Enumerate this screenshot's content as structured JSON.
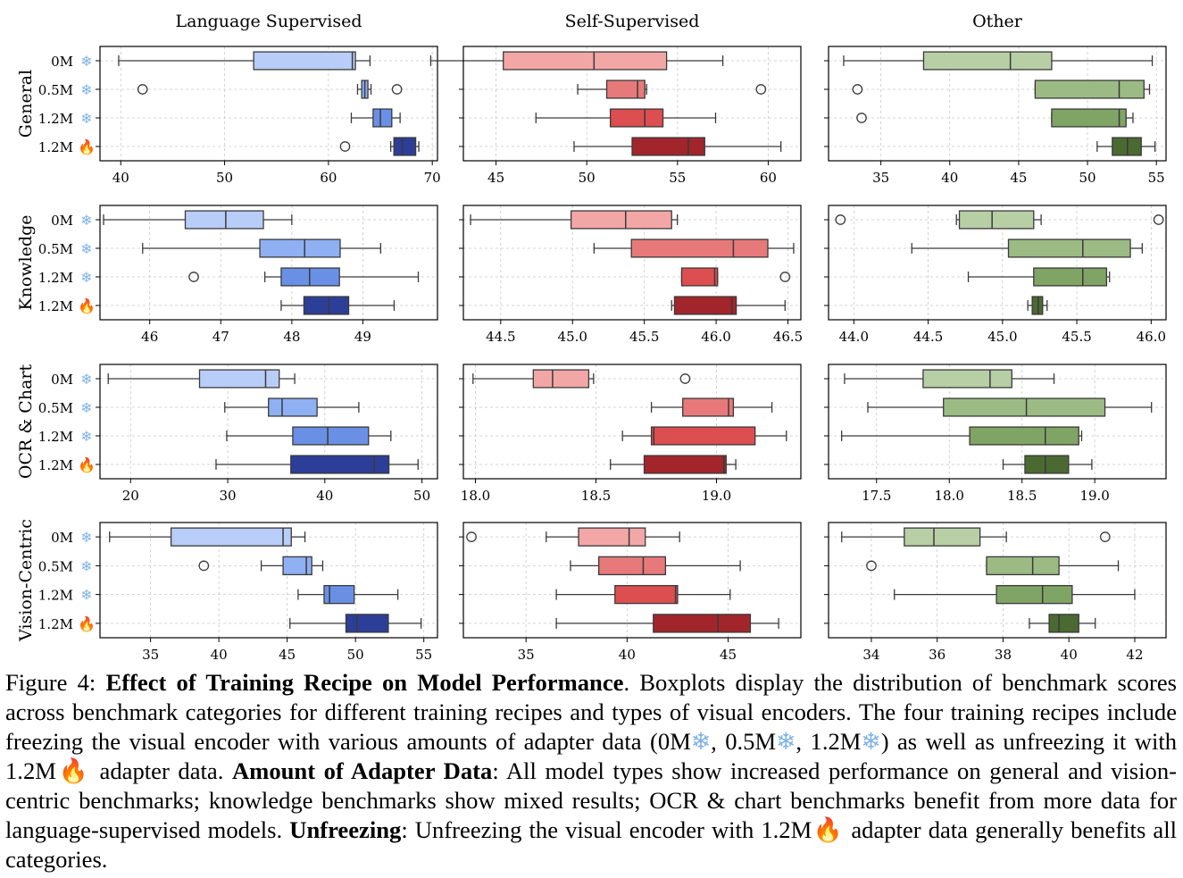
{
  "figure": {
    "columns": [
      "Language Supervised",
      "Self-Supervised",
      "Other"
    ],
    "rows": [
      "General",
      "Knowledge",
      "OCR & Chart",
      "Vision-Centric"
    ],
    "recipes": [
      "0M",
      "0.5M",
      "1.2M",
      "1.2M"
    ],
    "recipe_icons": [
      "snowflake",
      "snowflake",
      "snowflake",
      "fire"
    ],
    "icon_glyphs": {
      "snowflake": "❄",
      "fire": "🔥"
    }
  },
  "colors": {
    "Language Supervised": [
      "#b8cdf7",
      "#8fb0f2",
      "#6a90e6",
      "#2c3e97"
    ],
    "Self-Supervised": [
      "#f2a7a6",
      "#e8797a",
      "#dd4e50",
      "#a3252c"
    ],
    "Other": [
      "#b8cfa5",
      "#9cbb84",
      "#80a465",
      "#4a6a31"
    ]
  },
  "chart_data": [
    {
      "type": "boxplot",
      "row": "General",
      "column": "Language Supervised",
      "xlim": [
        38,
        70.5
      ],
      "xticks": [
        40,
        50,
        60,
        70
      ],
      "boxes": [
        {
          "recipe": "0M",
          "whislo": 39.8,
          "q1": 52.8,
          "med": 62.3,
          "q3": 62.6,
          "whishi": 64.0,
          "fliers": []
        },
        {
          "recipe": "0.5M",
          "whislo": 62.8,
          "q1": 63.2,
          "med": 63.5,
          "q3": 63.8,
          "whishi": 64.1,
          "fliers": [
            42.1,
            66.6
          ]
        },
        {
          "recipe": "1.2M",
          "whislo": 62.2,
          "q1": 64.3,
          "med": 65.0,
          "q3": 66.1,
          "whishi": 66.9,
          "fliers": []
        },
        {
          "recipe": "1.2M",
          "whislo": 66.0,
          "q1": 66.3,
          "med": 67.1,
          "q3": 68.4,
          "whishi": 68.7,
          "fliers": [
            61.6
          ]
        }
      ]
    },
    {
      "type": "boxplot",
      "row": "General",
      "column": "Self-Supervised",
      "xlim": [
        43.2,
        61.8
      ],
      "xticks": [
        45,
        50,
        55,
        60
      ],
      "boxes": [
        {
          "recipe": "0M",
          "whislo": 41.4,
          "q1": 45.4,
          "med": 50.4,
          "q3": 54.4,
          "whishi": 57.5,
          "fliers": []
        },
        {
          "recipe": "0.5M",
          "whislo": 49.5,
          "q1": 51.1,
          "med": 52.8,
          "q3": 53.2,
          "whishi": 53.3,
          "fliers": [
            59.6
          ]
        },
        {
          "recipe": "1.2M",
          "whislo": 47.2,
          "q1": 51.3,
          "med": 53.2,
          "q3": 54.2,
          "whishi": 57.1,
          "fliers": []
        },
        {
          "recipe": "1.2M",
          "whislo": 49.3,
          "q1": 52.5,
          "med": 55.6,
          "q3": 56.5,
          "whishi": 60.7,
          "fliers": []
        }
      ]
    },
    {
      "type": "boxplot",
      "row": "General",
      "column": "Other",
      "xlim": [
        31.2,
        55.7
      ],
      "xticks": [
        35,
        40,
        45,
        50,
        55
      ],
      "boxes": [
        {
          "recipe": "0M",
          "whislo": 32.3,
          "q1": 38.1,
          "med": 44.4,
          "q3": 47.4,
          "whishi": 54.7,
          "fliers": []
        },
        {
          "recipe": "0.5M",
          "whislo": 46.2,
          "q1": 46.2,
          "med": 52.3,
          "q3": 54.1,
          "whishi": 54.5,
          "fliers": [
            33.3
          ]
        },
        {
          "recipe": "1.2M",
          "whislo": 47.4,
          "q1": 47.4,
          "med": 52.3,
          "q3": 52.8,
          "whishi": 53.3,
          "fliers": [
            33.6
          ]
        },
        {
          "recipe": "1.2M",
          "whislo": 50.7,
          "q1": 51.8,
          "med": 52.9,
          "q3": 53.9,
          "whishi": 54.9,
          "fliers": []
        }
      ]
    },
    {
      "type": "boxplot",
      "row": "Knowledge",
      "column": "Language Supervised",
      "xlim": [
        45.3,
        50.05
      ],
      "xticks": [
        46,
        47,
        48,
        49
      ],
      "boxes": [
        {
          "recipe": "0M",
          "whislo": 45.35,
          "q1": 46.5,
          "med": 47.07,
          "q3": 47.6,
          "whishi": 48.0,
          "fliers": []
        },
        {
          "recipe": "0.5M",
          "whislo": 45.9,
          "q1": 47.55,
          "med": 48.18,
          "q3": 48.68,
          "whishi": 49.25,
          "fliers": []
        },
        {
          "recipe": "1.2M",
          "whislo": 47.62,
          "q1": 47.85,
          "med": 48.25,
          "q3": 48.67,
          "whishi": 49.78,
          "fliers": [
            46.62
          ]
        },
        {
          "recipe": "1.2M",
          "whislo": 47.85,
          "q1": 48.17,
          "med": 48.52,
          "q3": 48.8,
          "whishi": 49.44,
          "fliers": []
        }
      ]
    },
    {
      "type": "boxplot",
      "row": "Knowledge",
      "column": "Self-Supervised",
      "xlim": [
        44.24,
        46.59
      ],
      "xticks": [
        44.5,
        45.0,
        45.5,
        46.0,
        46.5
      ],
      "boxes": [
        {
          "recipe": "0M",
          "whislo": 44.29,
          "q1": 44.99,
          "med": 45.37,
          "q3": 45.69,
          "whishi": 45.73,
          "fliers": []
        },
        {
          "recipe": "0.5M",
          "whislo": 45.15,
          "q1": 45.41,
          "med": 46.12,
          "q3": 46.36,
          "whishi": 46.54,
          "fliers": []
        },
        {
          "recipe": "1.2M",
          "whislo": 45.76,
          "q1": 45.76,
          "med": 45.99,
          "q3": 46.01,
          "whishi": 46.01,
          "fliers": [
            46.48
          ]
        },
        {
          "recipe": "1.2M",
          "whislo": 45.69,
          "q1": 45.71,
          "med": 46.11,
          "q3": 46.14,
          "whishi": 46.48,
          "fliers": []
        }
      ]
    },
    {
      "type": "boxplot",
      "row": "Knowledge",
      "column": "Other",
      "xlim": [
        43.83,
        46.1
      ],
      "xticks": [
        44.0,
        44.5,
        45.0,
        45.5,
        46.0
      ],
      "boxes": [
        {
          "recipe": "0M",
          "whislo": 44.69,
          "q1": 44.71,
          "med": 44.93,
          "q3": 45.21,
          "whishi": 45.26,
          "fliers": [
            43.91,
            46.05
          ]
        },
        {
          "recipe": "0.5M",
          "whislo": 44.39,
          "q1": 45.04,
          "med": 45.54,
          "q3": 45.86,
          "whishi": 45.94,
          "fliers": []
        },
        {
          "recipe": "1.2M",
          "whislo": 44.77,
          "q1": 45.21,
          "med": 45.54,
          "q3": 45.7,
          "whishi": 45.72,
          "fliers": []
        },
        {
          "recipe": "1.2M",
          "whislo": 45.17,
          "q1": 45.2,
          "med": 45.24,
          "q3": 45.27,
          "whishi": 45.3,
          "fliers": []
        }
      ]
    },
    {
      "type": "boxplot",
      "row": "OCR & Chart",
      "column": "Language Supervised",
      "xlim": [
        16.85,
        51.6
      ],
      "xticks": [
        20,
        30,
        40,
        50
      ],
      "boxes": [
        {
          "recipe": "0M",
          "whislo": 17.7,
          "q1": 27.1,
          "med": 33.9,
          "q3": 35.3,
          "whishi": 36.9,
          "fliers": []
        },
        {
          "recipe": "0.5M",
          "whislo": 29.7,
          "q1": 34.2,
          "med": 35.6,
          "q3": 39.2,
          "whishi": 43.5,
          "fliers": []
        },
        {
          "recipe": "1.2M",
          "whislo": 29.9,
          "q1": 36.7,
          "med": 40.3,
          "q3": 44.5,
          "whishi": 46.8,
          "fliers": []
        },
        {
          "recipe": "1.2M",
          "whislo": 28.8,
          "q1": 36.5,
          "med": 45.1,
          "q3": 46.6,
          "whishi": 49.6,
          "fliers": []
        }
      ]
    },
    {
      "type": "boxplot",
      "row": "OCR & Chart",
      "column": "Self-Supervised",
      "xlim": [
        17.95,
        19.35
      ],
      "xticks": [
        18.0,
        18.5,
        19.0
      ],
      "boxes": [
        {
          "recipe": "0M",
          "whislo": 17.99,
          "q1": 18.24,
          "med": 18.32,
          "q3": 18.47,
          "whishi": 18.49,
          "fliers": [
            18.87
          ]
        },
        {
          "recipe": "0.5M",
          "whislo": 18.73,
          "q1": 18.86,
          "med": 19.05,
          "q3": 19.07,
          "whishi": 19.23,
          "fliers": []
        },
        {
          "recipe": "1.2M",
          "whislo": 18.61,
          "q1": 18.73,
          "med": 18.74,
          "q3": 19.16,
          "whishi": 19.29,
          "fliers": []
        },
        {
          "recipe": "1.2M",
          "whislo": 18.56,
          "q1": 18.7,
          "med": 19.03,
          "q3": 19.04,
          "whishi": 19.08,
          "fliers": []
        }
      ]
    },
    {
      "type": "boxplot",
      "row": "OCR & Chart",
      "column": "Other",
      "xlim": [
        17.17,
        19.49
      ],
      "xticks": [
        17.5,
        18.0,
        18.5,
        19.0
      ],
      "boxes": [
        {
          "recipe": "0M",
          "whislo": 17.28,
          "q1": 17.82,
          "med": 18.28,
          "q3": 18.43,
          "whishi": 18.72,
          "fliers": []
        },
        {
          "recipe": "0.5M",
          "whislo": 17.44,
          "q1": 17.96,
          "med": 18.53,
          "q3": 19.07,
          "whishi": 19.39,
          "fliers": []
        },
        {
          "recipe": "1.2M",
          "whislo": 17.26,
          "q1": 18.14,
          "med": 18.66,
          "q3": 18.89,
          "whishi": 18.91,
          "fliers": []
        },
        {
          "recipe": "1.2M",
          "whislo": 18.37,
          "q1": 18.52,
          "med": 18.66,
          "q3": 18.82,
          "whishi": 18.98,
          "fliers": []
        }
      ]
    },
    {
      "type": "boxplot",
      "row": "Vision-Centric",
      "column": "Language Supervised",
      "xlim": [
        31.3,
        56.0
      ],
      "xticks": [
        35,
        40,
        45,
        50,
        55
      ],
      "boxes": [
        {
          "recipe": "0M",
          "whislo": 32.0,
          "q1": 36.5,
          "med": 44.7,
          "q3": 45.3,
          "whishi": 46.3,
          "fliers": []
        },
        {
          "recipe": "0.5M",
          "whislo": 43.1,
          "q1": 44.7,
          "med": 46.4,
          "q3": 46.8,
          "whishi": 47.6,
          "fliers": [
            38.9
          ]
        },
        {
          "recipe": "1.2M",
          "whislo": 45.8,
          "q1": 47.7,
          "med": 48.1,
          "q3": 49.9,
          "whishi": 53.1,
          "fliers": []
        },
        {
          "recipe": "1.2M",
          "whislo": 45.2,
          "q1": 49.3,
          "med": 50.1,
          "q3": 52.4,
          "whishi": 54.8,
          "fliers": []
        }
      ]
    },
    {
      "type": "boxplot",
      "row": "Vision-Centric",
      "column": "Self-Supervised",
      "xlim": [
        31.9,
        48.6
      ],
      "xticks": [
        35,
        40,
        45
      ],
      "boxes": [
        {
          "recipe": "0M",
          "whislo": 36.0,
          "q1": 37.6,
          "med": 40.1,
          "q3": 40.9,
          "whishi": 42.6,
          "fliers": [
            32.3
          ]
        },
        {
          "recipe": "0.5M",
          "whislo": 37.2,
          "q1": 38.6,
          "med": 40.8,
          "q3": 41.9,
          "whishi": 45.6,
          "fliers": []
        },
        {
          "recipe": "1.2M",
          "whislo": 36.5,
          "q1": 39.4,
          "med": 42.4,
          "q3": 42.5,
          "whishi": 45.1,
          "fliers": []
        },
        {
          "recipe": "1.2M",
          "whislo": 36.5,
          "q1": 41.3,
          "med": 44.5,
          "q3": 46.1,
          "whishi": 47.5,
          "fliers": []
        }
      ]
    },
    {
      "type": "boxplot",
      "row": "Vision-Centric",
      "column": "Other",
      "xlim": [
        32.7,
        42.95
      ],
      "xticks": [
        34,
        36,
        38,
        40,
        42
      ],
      "boxes": [
        {
          "recipe": "0M",
          "whislo": 33.1,
          "q1": 35.0,
          "med": 35.9,
          "q3": 37.3,
          "whishi": 38.1,
          "fliers": [
            41.1
          ]
        },
        {
          "recipe": "0.5M",
          "whislo": 37.5,
          "q1": 37.5,
          "med": 38.9,
          "q3": 39.7,
          "whishi": 41.5,
          "fliers": [
            34.0
          ]
        },
        {
          "recipe": "1.2M",
          "whislo": 34.7,
          "q1": 37.8,
          "med": 39.2,
          "q3": 40.1,
          "whishi": 42.0,
          "fliers": []
        },
        {
          "recipe": "1.2M",
          "whislo": 38.8,
          "q1": 39.4,
          "med": 39.7,
          "q3": 40.3,
          "whishi": 40.8,
          "fliers": []
        }
      ]
    }
  ],
  "caption": {
    "label": "Figure 4: ",
    "title": "Effect of Training Recipe on Model Performance",
    "s1": ". Boxplots display the distribution of benchmark scores across benchmark categories for different training recipes and types of visual encoders. The four training recipes include freezing the visual encoder with various amounts of adapter data (",
    "r1": "0M",
    "sep1": ", ",
    "r2": "0.5M",
    "sep2": ", ",
    "r3": "1.2M",
    "s2": ") as well as unfreezing it with ",
    "r4": "1.2M",
    "s3": " adapter data. ",
    "b2": "Amount of Adapter Data",
    "s4": ": All model types show increased performance on general and vision-centric benchmarks; knowledge benchmarks show mixed results; OCR & chart benchmarks benefit from more data for language-supervised models. ",
    "b3": "Unfreezing",
    "s5": ": Unfreezing the visual encoder with ",
    "r5": "1.2M",
    "s6": " adapter data generally benefits all categories."
  }
}
